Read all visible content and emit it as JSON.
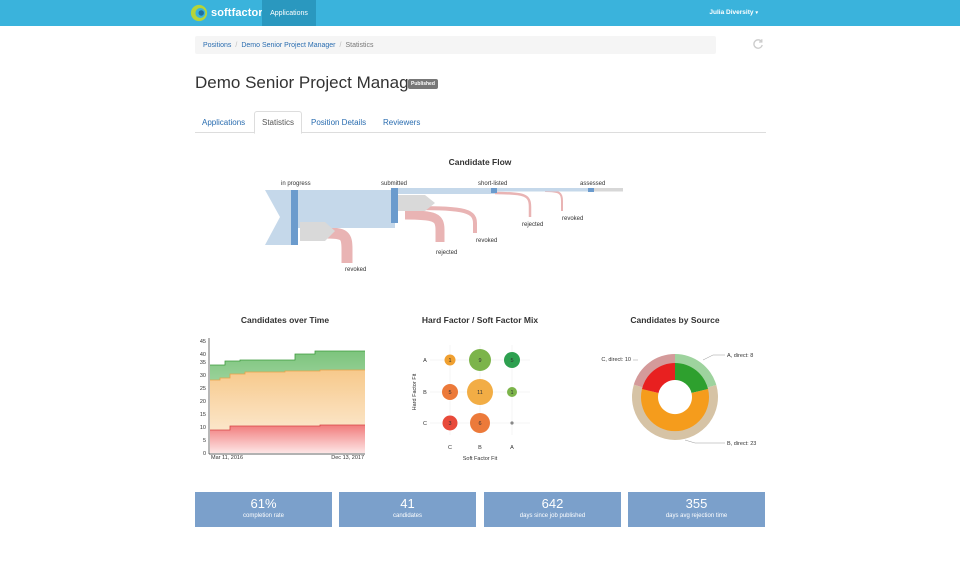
{
  "nav": {
    "brand": "softfactors",
    "applications": "Applications",
    "user": "Julia Diversity"
  },
  "breadcrumb": {
    "positions": "Positions",
    "position": "Demo Senior Project Manager",
    "current": "Statistics"
  },
  "page": {
    "title": "Demo Senior Project Manager",
    "status": "Published"
  },
  "tabs": [
    "Applications",
    "Statistics",
    "Position Details",
    "Reviewers"
  ],
  "flow": {
    "title": "Candidate Flow",
    "stages": [
      "in progress",
      "submitted",
      "short-listed",
      "assessed"
    ],
    "exits": [
      "revoked",
      "rejected",
      "revoked",
      "rejected",
      "revoked"
    ]
  },
  "over_time": {
    "title": "Candidates over Time",
    "y_ticks": [
      "0",
      "5",
      "10",
      "15",
      "20",
      "25",
      "30",
      "35",
      "40",
      "45"
    ],
    "x_start": "Mar 11, 2016",
    "x_end": "Dec 13, 2017"
  },
  "mix": {
    "title": "Hard Factor / Soft Factor Mix",
    "ylabel": "Hard Factor Fit",
    "xlabel": "Soft Factor Fit",
    "row_labels": [
      "A",
      "B",
      "C"
    ],
    "col_labels": [
      "C",
      "B",
      "A"
    ],
    "cells": [
      "1",
      "9",
      "5",
      "5",
      "11",
      "1",
      "3",
      "6"
    ]
  },
  "source": {
    "title": "Candidates by Source",
    "labels": [
      "C, direct: 10",
      "A, direct: 8",
      "B, direct: 23"
    ]
  },
  "stats": [
    {
      "value": "61%",
      "label": "completion rate"
    },
    {
      "value": "41",
      "label": "candidates"
    },
    {
      "value": "642",
      "label": "days since job published"
    },
    {
      "value": "355",
      "label": "days avg rejection time"
    }
  ],
  "colors": {
    "nav": "#3ab3dc",
    "stat": "#7ba0cb",
    "green": "#5cb85c",
    "orange": "#f0a030",
    "red": "#e84040"
  }
}
